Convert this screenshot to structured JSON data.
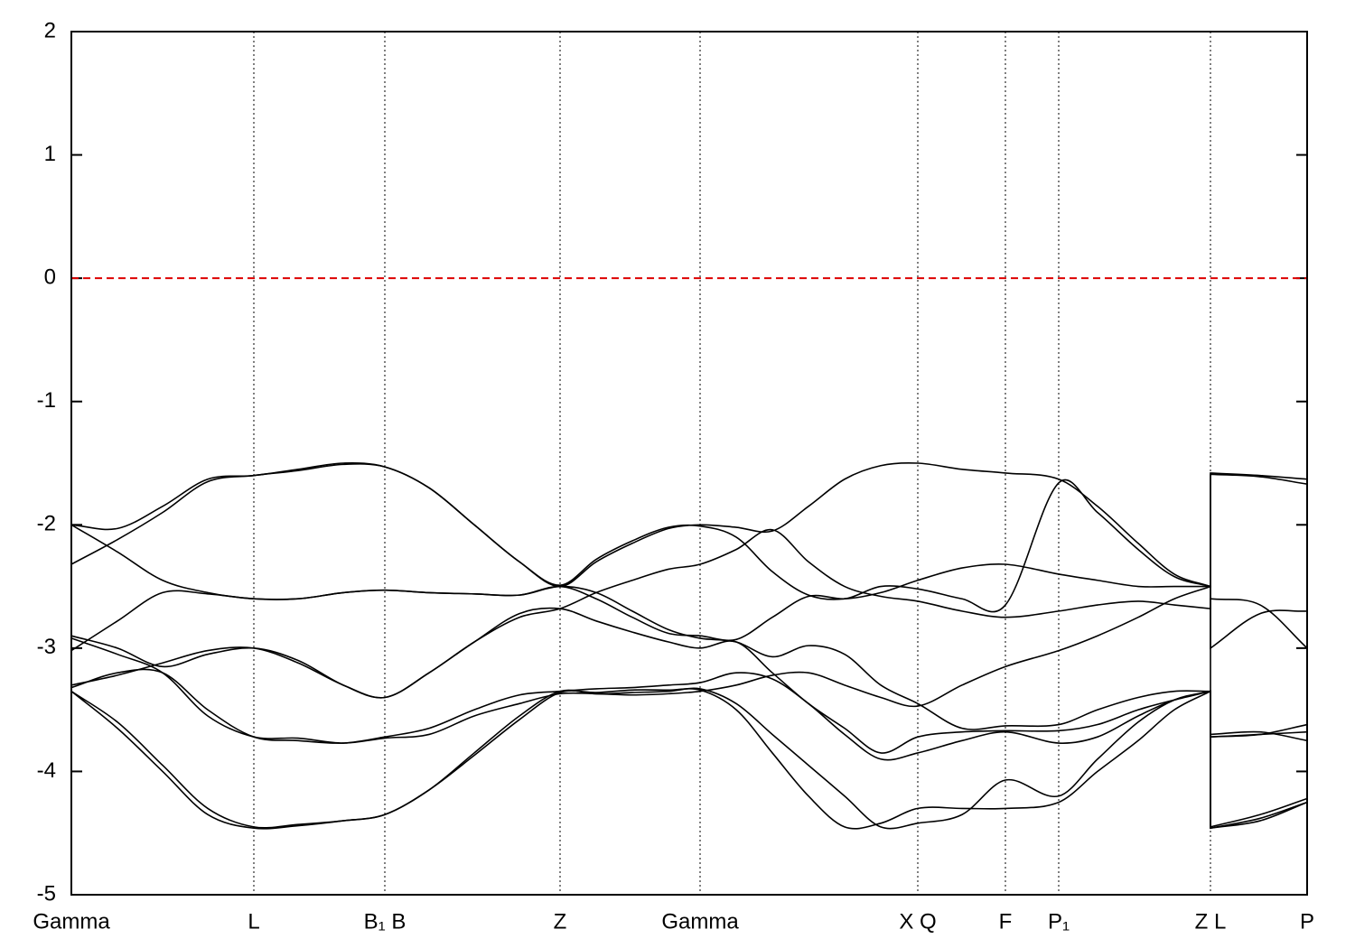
{
  "chart_data": {
    "type": "line",
    "x": [
      0,
      0.51,
      1.01,
      1.51,
      2.02,
      2.51,
      3.01,
      3.47,
      3.96,
      4.46,
      4.96,
      5.41,
      5.81,
      6.21,
      6.61,
      6.96,
      7.36,
      7.76,
      8.16,
      8.56,
      8.96,
      9.37,
      9.86,
      10.34,
      10.93,
      11.36,
      11.81,
      12.21,
      12.61,
      12.61,
      13.16,
      13.68
    ],
    "series": [
      {
        "color": "#000000",
        "values": [
          -2.0,
          -2.03,
          -1.85,
          -1.63,
          -1.6,
          -1.55,
          -1.5,
          -1.53,
          -1.7,
          -2.0,
          -2.3,
          -2.5,
          -2.3,
          -2.15,
          -2.03,
          -2.0,
          -2.02,
          -2.05,
          -1.85,
          -1.63,
          -1.52,
          -1.5,
          -1.55,
          -1.58,
          -1.63,
          -1.85,
          -2.15,
          -2.4,
          -2.5,
          -1.58,
          -1.6,
          -1.63
        ]
      },
      {
        "color": "#000000",
        "values": [
          -2.32,
          -2.12,
          -1.9,
          -1.65,
          -1.6,
          -1.56,
          -1.51,
          -1.53,
          -1.7,
          -2.0,
          -2.3,
          -2.49,
          -2.28,
          -2.13,
          -2.02,
          -2.01,
          -2.1,
          -2.38,
          -2.57,
          -2.6,
          -2.5,
          -2.52,
          -2.6,
          -2.65,
          -1.66,
          -1.9,
          -2.2,
          -2.42,
          -2.5,
          -1.59,
          -1.61,
          -1.67
        ]
      },
      {
        "color": "#000000",
        "values": [
          -2.0,
          -2.22,
          -2.45,
          -2.55,
          -2.6,
          -2.6,
          -2.55,
          -2.53,
          -2.55,
          -2.56,
          -2.57,
          -2.5,
          -2.55,
          -2.7,
          -2.85,
          -2.92,
          -2.95,
          -3.07,
          -2.98,
          -3.05,
          -3.3,
          -3.45,
          -3.65,
          -3.63,
          -3.62,
          -3.5,
          -3.4,
          -3.35,
          -3.35,
          -3.72,
          -3.7,
          -3.68
        ]
      },
      {
        "color": "#000000",
        "values": [
          -3.02,
          -2.78,
          -2.55,
          -2.56,
          -2.6,
          -2.6,
          -2.55,
          -2.53,
          -2.55,
          -2.56,
          -2.57,
          -2.5,
          -2.6,
          -2.75,
          -2.88,
          -2.9,
          -2.93,
          -2.75,
          -2.58,
          -2.6,
          -2.55,
          -2.45,
          -2.35,
          -2.32,
          -2.4,
          -2.45,
          -2.5,
          -2.5,
          -2.5,
          -3.0,
          -2.72,
          -2.7
        ]
      },
      {
        "color": "#000000",
        "values": [
          -2.9,
          -3.0,
          -3.15,
          -3.05,
          -3.0,
          -3.1,
          -3.3,
          -3.4,
          -3.2,
          -2.95,
          -2.75,
          -2.68,
          -2.55,
          -2.45,
          -2.36,
          -2.32,
          -2.2,
          -2.04,
          -2.3,
          -2.5,
          -2.58,
          -2.62,
          -2.7,
          -2.75,
          -2.7,
          -2.65,
          -2.62,
          -2.65,
          -2.68,
          -2.6,
          -2.65,
          -3.0
        ]
      },
      {
        "color": "#000000",
        "values": [
          -2.92,
          -3.05,
          -3.2,
          -3.55,
          -3.72,
          -3.73,
          -3.77,
          -3.73,
          -3.7,
          -3.55,
          -3.45,
          -3.37,
          -3.37,
          -3.38,
          -3.37,
          -3.35,
          -3.3,
          -3.22,
          -3.2,
          -3.3,
          -3.4,
          -3.47,
          -3.3,
          -3.15,
          -3.02,
          -2.9,
          -2.75,
          -2.6,
          -2.5,
          -3.72,
          -3.7,
          -3.62
        ]
      },
      {
        "color": "#000000",
        "values": [
          -3.3,
          -3.22,
          -3.12,
          -3.02,
          -3.0,
          -3.12,
          -3.3,
          -3.4,
          -3.2,
          -2.95,
          -2.72,
          -2.68,
          -2.78,
          -2.87,
          -2.95,
          -3.0,
          -2.95,
          -3.2,
          -3.45,
          -3.65,
          -3.85,
          -3.72,
          -3.68,
          -3.67,
          -3.67,
          -3.62,
          -3.5,
          -3.42,
          -3.35,
          -4.46,
          -4.4,
          -4.25
        ]
      },
      {
        "color": "#000000",
        "values": [
          -3.32,
          -3.2,
          -3.2,
          -3.5,
          -3.72,
          -3.75,
          -3.77,
          -3.72,
          -3.65,
          -3.5,
          -3.38,
          -3.35,
          -3.33,
          -3.32,
          -3.3,
          -3.28,
          -3.2,
          -3.25,
          -3.45,
          -3.7,
          -3.9,
          -3.85,
          -3.75,
          -3.68,
          -3.77,
          -3.72,
          -3.55,
          -3.42,
          -3.35,
          -4.45,
          -4.35,
          -4.22
        ]
      },
      {
        "color": "#000000",
        "values": [
          -3.35,
          -3.6,
          -3.95,
          -4.3,
          -4.45,
          -4.43,
          -4.4,
          -4.35,
          -4.15,
          -3.85,
          -3.55,
          -3.35,
          -3.37,
          -3.36,
          -3.35,
          -3.33,
          -3.45,
          -3.7,
          -3.95,
          -4.2,
          -4.45,
          -4.42,
          -4.35,
          -4.07,
          -4.2,
          -3.9,
          -3.6,
          -3.42,
          -3.35,
          -4.46,
          -4.38,
          -4.25
        ]
      },
      {
        "color": "#000000",
        "values": [
          -3.35,
          -3.65,
          -4.0,
          -4.35,
          -4.46,
          -4.44,
          -4.4,
          -4.35,
          -4.15,
          -3.87,
          -3.58,
          -3.36,
          -3.36,
          -3.34,
          -3.34,
          -3.34,
          -3.5,
          -3.85,
          -4.2,
          -4.45,
          -4.42,
          -4.3,
          -4.3,
          -4.3,
          -4.25,
          -4.0,
          -3.75,
          -3.5,
          -3.35,
          -3.7,
          -3.68,
          -3.75
        ]
      }
    ],
    "xlim": [
      0,
      13.68
    ],
    "xticks": [
      {
        "value": 0,
        "label": "Gamma"
      },
      {
        "value": 2.02,
        "label": "L"
      },
      {
        "value": 3.47,
        "label": "B₁ B"
      },
      {
        "value": 5.41,
        "label": "Z"
      },
      {
        "value": 6.96,
        "label": "Gamma"
      },
      {
        "value": 9.37,
        "label": "X Q"
      },
      {
        "value": 10.34,
        "label": "F"
      },
      {
        "value": 10.93,
        "label": "P₁"
      },
      {
        "value": 12.61,
        "label": "Z L"
      },
      {
        "value": 13.68,
        "label": "P"
      }
    ],
    "ylim": [
      -5,
      2
    ],
    "yticks": [
      -5,
      -4,
      -3,
      -2,
      -1,
      0,
      1,
      2
    ],
    "reference_line": {
      "y": 0,
      "color": "#dd0000"
    }
  }
}
